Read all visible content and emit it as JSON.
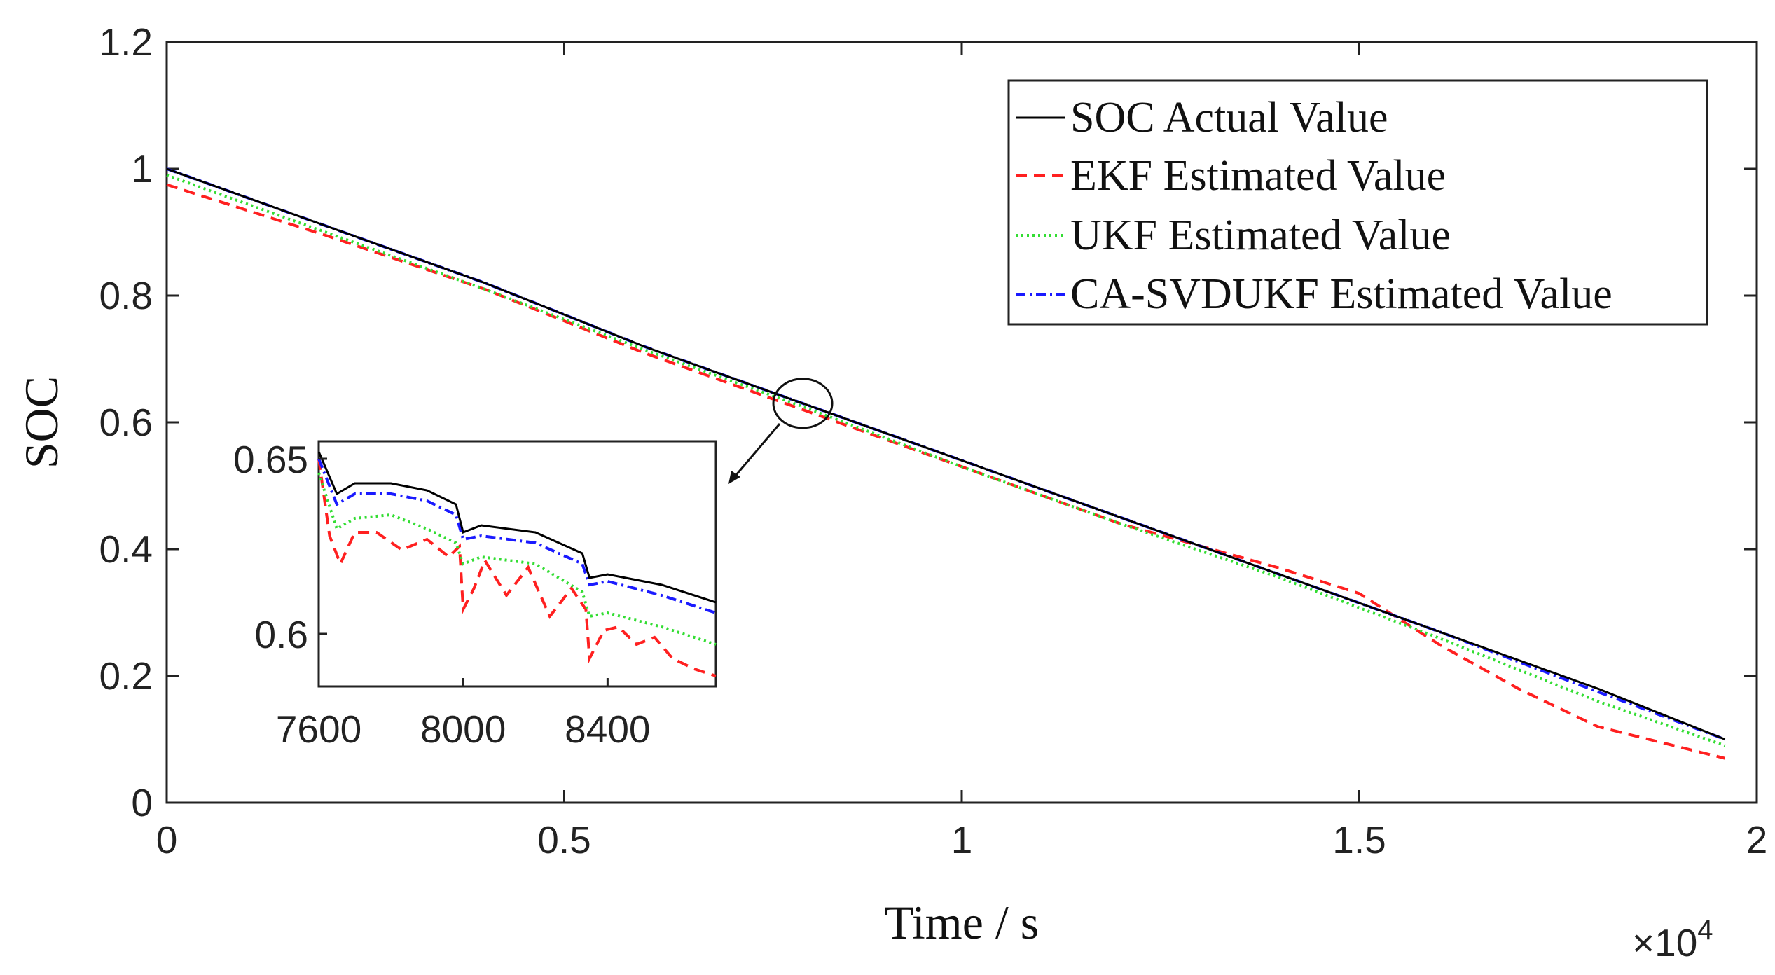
{
  "chart_data": {
    "type": "line",
    "xlabel": "Time / s",
    "ylabel": "SOC",
    "x_multiplier": "×10",
    "x_multiplier_exp": "4",
    "xlim": [
      0,
      20000
    ],
    "ylim": [
      0,
      1.2
    ],
    "xticks": [
      0,
      5000,
      10000,
      15000,
      20000
    ],
    "xtick_labels": [
      "0",
      "0.5",
      "1",
      "1.5",
      "2"
    ],
    "yticks": [
      0,
      0.2,
      0.4,
      0.6,
      0.8,
      1,
      1.2
    ],
    "ytick_labels": [
      "0",
      "0.2",
      "0.4",
      "0.6",
      "0.8",
      "1",
      "1.2"
    ],
    "legend_position": "top-right",
    "colors": {
      "actual": "#000000",
      "ekf": "#ff2020",
      "ukf": "#33dd33",
      "ca_svdukf": "#1a1aff"
    },
    "series": [
      {
        "name": "SOC Actual Value",
        "key": "actual",
        "style": "solid",
        "x": [
          0,
          2000,
          4000,
          6000,
          8000,
          10000,
          12000,
          14000,
          16000,
          18000,
          19600
        ],
        "y": [
          1.0,
          0.91,
          0.82,
          0.72,
          0.63,
          0.54,
          0.45,
          0.36,
          0.27,
          0.18,
          0.1
        ]
      },
      {
        "name": "EKF Estimated Value",
        "key": "ekf",
        "style": "dashed",
        "x": [
          0,
          2000,
          4000,
          6000,
          8000,
          10000,
          12000,
          14000,
          15000,
          16000,
          17000,
          18000,
          19600
        ],
        "y": [
          0.975,
          0.895,
          0.81,
          0.71,
          0.62,
          0.53,
          0.44,
          0.37,
          0.33,
          0.25,
          0.18,
          0.12,
          0.07
        ]
      },
      {
        "name": "UKF Estimated Value",
        "key": "ukf",
        "style": "dotted",
        "x": [
          0,
          2000,
          4000,
          6000,
          8000,
          10000,
          12000,
          14000,
          16000,
          18000,
          19600
        ],
        "y": [
          0.99,
          0.9,
          0.81,
          0.715,
          0.625,
          0.53,
          0.44,
          0.355,
          0.26,
          0.16,
          0.09
        ]
      },
      {
        "name": "CA-SVDUKF Estimated Value",
        "key": "ca_svdukf",
        "style": "dashdot",
        "x": [
          0,
          2000,
          4000,
          6000,
          8000,
          10000,
          12000,
          14000,
          16000,
          18000,
          19600
        ],
        "y": [
          1.0,
          0.91,
          0.82,
          0.72,
          0.63,
          0.54,
          0.45,
          0.36,
          0.27,
          0.175,
          0.1
        ]
      }
    ],
    "inset": {
      "xlim": [
        7600,
        8700
      ],
      "ylim": [
        0.585,
        0.655
      ],
      "xticks": [
        7600,
        8000,
        8400
      ],
      "xtick_labels": [
        "7600",
        "8000",
        "8400"
      ],
      "yticks": [
        0.6,
        0.65
      ],
      "ytick_labels": [
        "0.6",
        "0.65"
      ],
      "zoom_center": [
        8000,
        0.63
      ],
      "series": [
        {
          "key": "actual",
          "x": [
            7600,
            7650,
            7700,
            7800,
            7900,
            7980,
            8000,
            8050,
            8200,
            8330,
            8350,
            8400,
            8550,
            8700
          ],
          "y": [
            0.652,
            0.64,
            0.643,
            0.643,
            0.641,
            0.637,
            0.629,
            0.631,
            0.629,
            0.623,
            0.616,
            0.617,
            0.614,
            0.609
          ]
        },
        {
          "key": "ca_svdukf",
          "x": [
            7600,
            7650,
            7700,
            7800,
            7900,
            7980,
            8000,
            8050,
            8200,
            8330,
            8350,
            8400,
            8550,
            8700
          ],
          "y": [
            0.65,
            0.637,
            0.64,
            0.64,
            0.638,
            0.634,
            0.627,
            0.628,
            0.626,
            0.62,
            0.614,
            0.615,
            0.611,
            0.606
          ]
        },
        {
          "key": "ukf",
          "x": [
            7600,
            7650,
            7700,
            7800,
            7900,
            7980,
            8000,
            8050,
            8200,
            8330,
            8350,
            8400,
            8550,
            8700
          ],
          "y": [
            0.646,
            0.63,
            0.633,
            0.634,
            0.63,
            0.626,
            0.62,
            0.622,
            0.62,
            0.612,
            0.605,
            0.606,
            0.602,
            0.597
          ]
        },
        {
          "key": "ekf",
          "x": [
            7600,
            7630,
            7660,
            7700,
            7760,
            7830,
            7900,
            7960,
            7990,
            8000,
            8030,
            8060,
            8120,
            8180,
            8240,
            8300,
            8340,
            8350,
            8390,
            8430,
            8480,
            8530,
            8580,
            8640,
            8700
          ],
          "y": [
            0.65,
            0.628,
            0.62,
            0.629,
            0.629,
            0.624,
            0.627,
            0.622,
            0.625,
            0.607,
            0.613,
            0.621,
            0.611,
            0.619,
            0.605,
            0.613,
            0.607,
            0.593,
            0.601,
            0.602,
            0.597,
            0.599,
            0.593,
            0.59,
            0.588
          ]
        }
      ]
    }
  }
}
